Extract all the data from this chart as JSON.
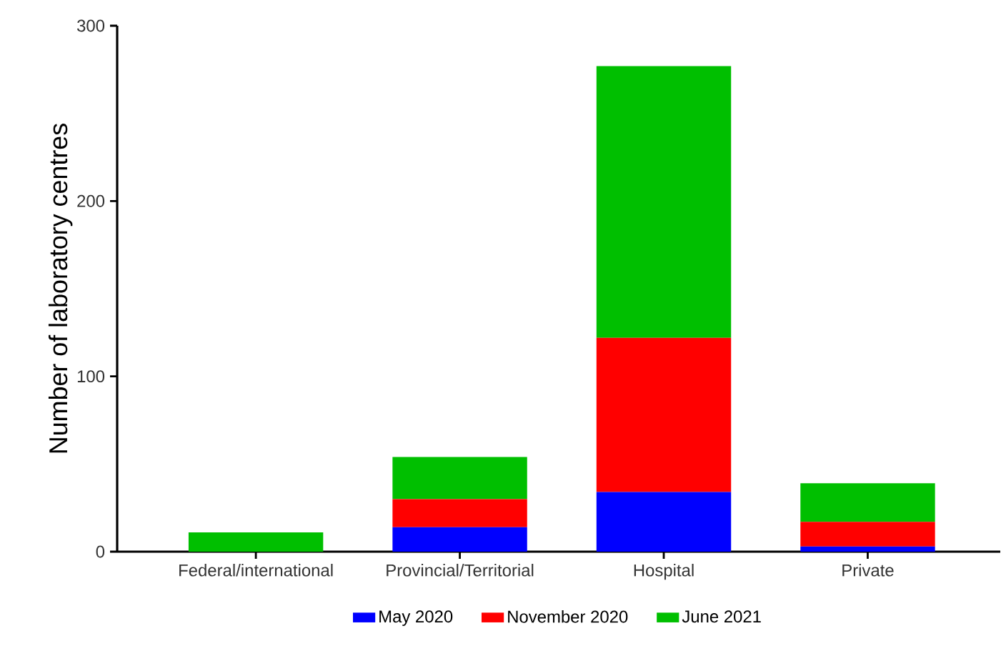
{
  "chart_data": {
    "type": "bar",
    "stacked": true,
    "ylabel": "Number of laboratory centres",
    "categories": [
      "Federal/international",
      "Provincial/Territorial",
      "Hospital",
      "Private"
    ],
    "series": [
      {
        "name": "May 2020",
        "color": "#0000ff",
        "values": [
          0,
          14,
          34,
          3
        ]
      },
      {
        "name": "November 2020",
        "color": "#ff0000",
        "values": [
          0,
          16,
          88,
          14
        ]
      },
      {
        "name": "June 2021",
        "color": "#00bf00",
        "values": [
          11,
          24,
          155,
          22
        ]
      }
    ],
    "ylim": [
      0,
      300
    ],
    "yticks": [
      0,
      100,
      200,
      300
    ],
    "grid": false,
    "legend": "bottom"
  }
}
